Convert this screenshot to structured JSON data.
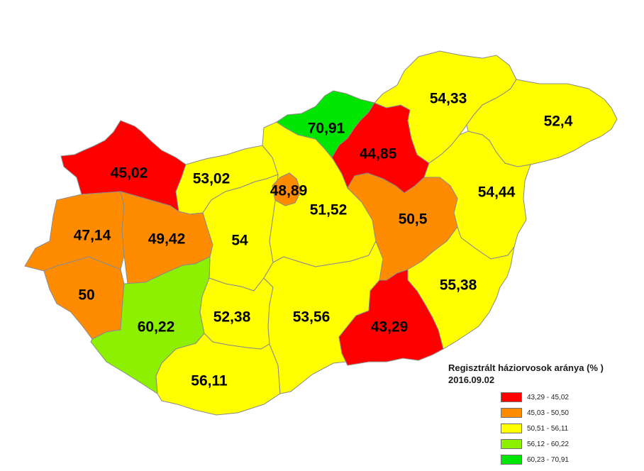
{
  "legend": {
    "title": "Regisztrált háziorvosok aránya (% )",
    "date": "2016.09.02",
    "classes": [
      {
        "label": "43,29 - 45,02",
        "color": "#ff0000"
      },
      {
        "label": "45,03 - 50,50",
        "color": "#ff8c00"
      },
      {
        "label": "50,51 - 56,11",
        "color": "#ffff00"
      },
      {
        "label": "56,12 - 60,22",
        "color": "#8cf000"
      },
      {
        "label": "60,23 - 70,91",
        "color": "#00e600"
      }
    ]
  },
  "regions": [
    {
      "id": "gyor-moson-sopron",
      "value": "45,02",
      "color": "#ff0000"
    },
    {
      "id": "komarom-esztergom",
      "value": "53,02",
      "color": "#ffff00"
    },
    {
      "id": "vas",
      "value": "47,14",
      "color": "#ff8c00"
    },
    {
      "id": "veszprem",
      "value": "49,42",
      "color": "#ff8c00"
    },
    {
      "id": "fejer",
      "value": "54",
      "color": "#ffff00"
    },
    {
      "id": "zala",
      "value": "50",
      "color": "#ff8c00"
    },
    {
      "id": "somogy",
      "value": "60,22",
      "color": "#8cf000"
    },
    {
      "id": "tolna",
      "value": "52,38",
      "color": "#ffff00"
    },
    {
      "id": "baranya",
      "value": "56,11",
      "color": "#ffff00"
    },
    {
      "id": "budapest",
      "value": "48,89",
      "color": "#ff8c00"
    },
    {
      "id": "pest",
      "value": "51,52",
      "color": "#ffff00"
    },
    {
      "id": "bacs-kiskun",
      "value": "53,56",
      "color": "#ffff00"
    },
    {
      "id": "nograd",
      "value": "70,91",
      "color": "#00e600"
    },
    {
      "id": "heves",
      "value": "44,85",
      "color": "#ff0000"
    },
    {
      "id": "borsod-abauj-zemplen",
      "value": "54,33",
      "color": "#ffff00"
    },
    {
      "id": "szabolcs-szatmar-bereg",
      "value": "52,4",
      "color": "#ffff00"
    },
    {
      "id": "hajdu-bihar",
      "value": "54,44",
      "color": "#ffff00"
    },
    {
      "id": "jasz-nagykun-szolnok",
      "value": "50,5",
      "color": "#ff8c00"
    },
    {
      "id": "bekes",
      "value": "55,38",
      "color": "#ffff00"
    },
    {
      "id": "csongrad",
      "value": "43,29",
      "color": "#ff0000"
    }
  ]
}
